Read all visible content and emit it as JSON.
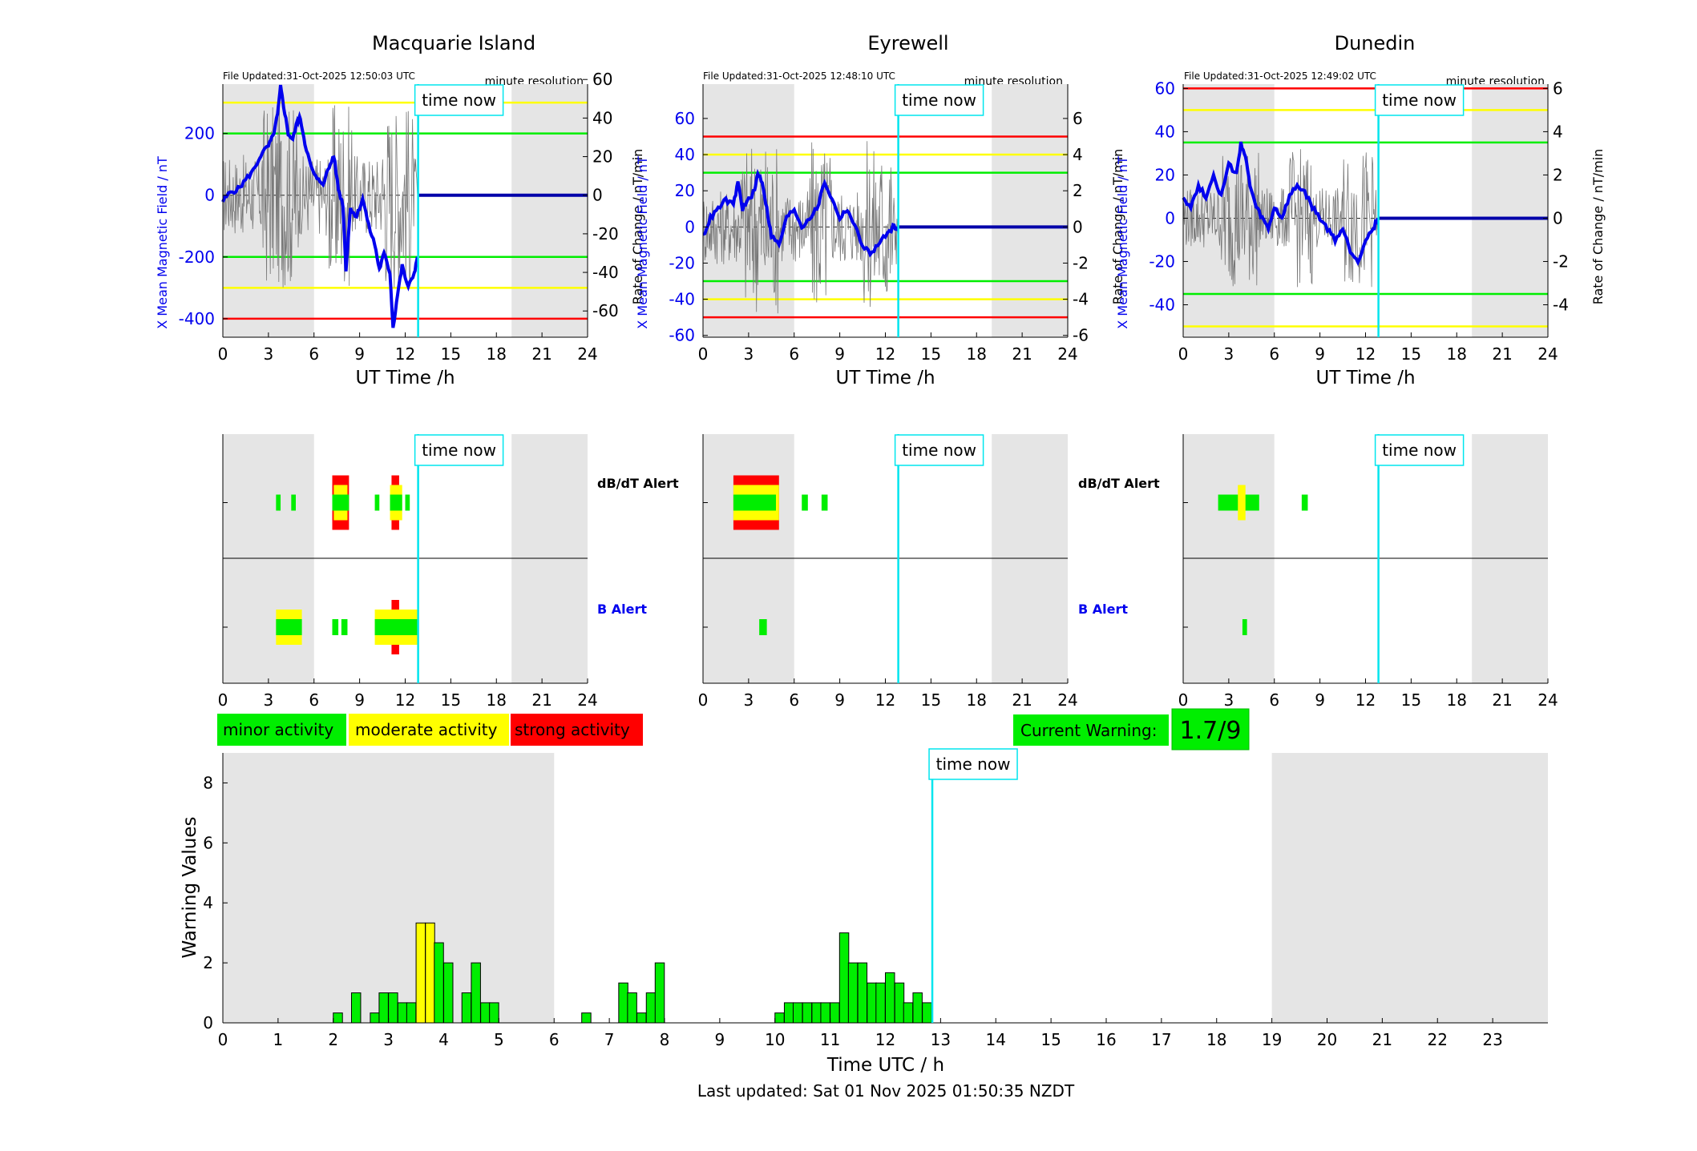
{
  "colors": {
    "night_shade": "#e5e5e5",
    "field_line": "#0000ee",
    "rate_line": "#777777",
    "minor": "#00ee00",
    "moderate": "#ffff00",
    "strong": "#ff0000",
    "time_now": "#00e5ee",
    "threshold_green": "#00ee00",
    "threshold_yellow": "#ffff00",
    "threshold_red": "#ff0000"
  },
  "common": {
    "time_now_label": "time now",
    "time_now_utc_h": 12.85,
    "resolution_label": "minute resolution",
    "x_label": "UT Time /h",
    "y_left_label": "X Mean Magnetic Field / nT",
    "y_right_label": "Rate of Change / nT/min",
    "dbdt_alert_label": "dB/dT Alert",
    "b_alert_label": "B Alert",
    "x_ticks": [
      0,
      3,
      6,
      9,
      12,
      15,
      18,
      21,
      24
    ]
  },
  "legend": {
    "minor": "minor activity",
    "moderate": "moderate activity",
    "strong": "strong activity"
  },
  "current_warning": {
    "label": "Current Warning:",
    "value": "1.7/9"
  },
  "footer": {
    "last_updated": "Last updated: Sat 01 Nov 2025 01:50:35 NZDT"
  },
  "chart_data": [
    {
      "type": "line",
      "station": "Macquarie Island",
      "file_updated": "File Updated:31-Oct-2025 12:50:03 UTC",
      "xlim": [
        0,
        24
      ],
      "ylim_left": [
        -460,
        360
      ],
      "ylim_right": [
        -73.6,
        57.6
      ],
      "left_ticks": [
        -400,
        -200,
        0,
        200
      ],
      "right_ticks": [
        -60,
        -40,
        -20,
        0,
        20,
        40,
        60
      ],
      "shading": [
        [
          0,
          6
        ],
        [
          19,
          24
        ]
      ],
      "thresholds_nT": [
        {
          "value": 300,
          "level": "moderate"
        },
        {
          "value": 200,
          "level": "minor"
        },
        {
          "value": -200,
          "level": "minor"
        },
        {
          "value": -300,
          "level": "moderate"
        },
        {
          "value": -400,
          "level": "strong"
        }
      ],
      "field_points": [
        [
          0,
          -20
        ],
        [
          0.5,
          10
        ],
        [
          1,
          20
        ],
        [
          1.5,
          50
        ],
        [
          2,
          80
        ],
        [
          2.5,
          130
        ],
        [
          3,
          160
        ],
        [
          3.3,
          190
        ],
        [
          3.6,
          260
        ],
        [
          3.8,
          350
        ],
        [
          4,
          290
        ],
        [
          4.3,
          200
        ],
        [
          4.6,
          180
        ],
        [
          4.9,
          240
        ],
        [
          5.1,
          250
        ],
        [
          5.4,
          170
        ],
        [
          5.8,
          90
        ],
        [
          6.2,
          50
        ],
        [
          6.6,
          40
        ],
        [
          7,
          90
        ],
        [
          7.3,
          130
        ],
        [
          7.6,
          20
        ],
        [
          7.9,
          -30
        ],
        [
          8.1,
          -240
        ],
        [
          8.4,
          -40
        ],
        [
          8.8,
          -70
        ],
        [
          9.2,
          -10
        ],
        [
          9.6,
          -100
        ],
        [
          10,
          -160
        ],
        [
          10.3,
          -240
        ],
        [
          10.6,
          -190
        ],
        [
          11,
          -250
        ],
        [
          11.2,
          -430
        ],
        [
          11.5,
          -320
        ],
        [
          11.8,
          -230
        ],
        [
          12.2,
          -300
        ],
        [
          12.6,
          -250
        ],
        [
          12.8,
          -200
        ]
      ],
      "rate_amplitude": 30,
      "dbdt_bars": [
        {
          "t": [
            3.5,
            3.8
          ],
          "level": "minor",
          "half": 10
        },
        {
          "t": [
            4.5,
            4.8
          ],
          "level": "minor",
          "half": 10
        },
        {
          "t": [
            7.2,
            8.3
          ],
          "level": "strong",
          "half": 34
        },
        {
          "t": [
            7.3,
            8.2
          ],
          "level": "moderate",
          "half": 22
        },
        {
          "t": [
            7.2,
            8.3
          ],
          "level": "minor",
          "half": 10
        },
        {
          "t": [
            10,
            10.3
          ],
          "level": "minor",
          "half": 10
        },
        {
          "t": [
            11.1,
            11.6
          ],
          "level": "strong",
          "half": 34
        },
        {
          "t": [
            11,
            11.8
          ],
          "level": "moderate",
          "half": 22
        },
        {
          "t": [
            11,
            11.8
          ],
          "level": "minor",
          "half": 10
        },
        {
          "t": [
            12,
            12.3
          ],
          "level": "minor",
          "half": 10
        }
      ],
      "b_bars": [
        {
          "t": [
            3.5,
            5.2
          ],
          "level": "moderate",
          "half": 22
        },
        {
          "t": [
            3.5,
            5.2
          ],
          "level": "minor",
          "half": 10
        },
        {
          "t": [
            7.2,
            7.6
          ],
          "level": "minor",
          "half": 10
        },
        {
          "t": [
            7.8,
            8.2
          ],
          "level": "minor",
          "half": 10
        },
        {
          "t": [
            11.1,
            11.6
          ],
          "level": "strong",
          "half": 34
        },
        {
          "t": [
            10,
            12.9
          ],
          "level": "moderate",
          "half": 22
        },
        {
          "t": [
            10,
            12.9
          ],
          "level": "minor",
          "half": 10
        }
      ]
    },
    {
      "type": "line",
      "station": "Eyrewell",
      "file_updated": "File Updated:31-Oct-2025 12:48:10 UTC",
      "xlim": [
        0,
        24
      ],
      "ylim_left": [
        -61,
        79
      ],
      "ylim_right": [
        -6.1,
        7.9
      ],
      "left_ticks": [
        -60,
        -40,
        -20,
        0,
        20,
        40,
        60
      ],
      "right_ticks": [
        -6,
        -4,
        -2,
        0,
        2,
        4,
        6
      ],
      "shading": [
        [
          0,
          6
        ],
        [
          19,
          24
        ]
      ],
      "thresholds_nT": [
        {
          "value": 50,
          "level": "strong"
        },
        {
          "value": 40,
          "level": "moderate"
        },
        {
          "value": 30,
          "level": "minor"
        },
        {
          "value": -30,
          "level": "minor"
        },
        {
          "value": -40,
          "level": "moderate"
        },
        {
          "value": -50,
          "level": "strong"
        }
      ],
      "field_points": [
        [
          0,
          -5
        ],
        [
          0.5,
          5
        ],
        [
          1,
          10
        ],
        [
          1.5,
          15
        ],
        [
          2,
          12
        ],
        [
          2.3,
          25
        ],
        [
          2.6,
          10
        ],
        [
          3,
          15
        ],
        [
          3.4,
          20
        ],
        [
          3.6,
          30
        ],
        [
          3.9,
          25
        ],
        [
          4.2,
          10
        ],
        [
          4.5,
          -5
        ],
        [
          5,
          -10
        ],
        [
          5.5,
          5
        ],
        [
          6,
          10
        ],
        [
          6.5,
          0
        ],
        [
          7,
          5
        ],
        [
          7.5,
          10
        ],
        [
          8,
          25
        ],
        [
          8.5,
          15
        ],
        [
          9,
          5
        ],
        [
          9.5,
          10
        ],
        [
          10,
          0
        ],
        [
          10.5,
          -10
        ],
        [
          11,
          -15
        ],
        [
          11.5,
          -10
        ],
        [
          12,
          -5
        ],
        [
          12.5,
          0
        ],
        [
          12.8,
          0
        ]
      ],
      "rate_amplitude": 3,
      "dbdt_bars": [
        {
          "t": [
            2,
            5
          ],
          "level": "strong",
          "half": 34
        },
        {
          "t": [
            2,
            5
          ],
          "level": "moderate",
          "half": 22
        },
        {
          "t": [
            2,
            4.8
          ],
          "level": "minor",
          "half": 10
        },
        {
          "t": [
            6.5,
            6.9
          ],
          "level": "minor",
          "half": 10
        },
        {
          "t": [
            7.8,
            8.2
          ],
          "level": "minor",
          "half": 10
        }
      ],
      "b_bars": [
        {
          "t": [
            3.7,
            4.2
          ],
          "level": "minor",
          "half": 10
        }
      ]
    },
    {
      "type": "line",
      "station": "Dunedin",
      "file_updated": "File Updated:31-Oct-2025 12:49:02 UTC",
      "xlim": [
        0,
        24
      ],
      "ylim_left": [
        -55,
        62
      ],
      "ylim_right": [
        -5.5,
        6.2
      ],
      "left_ticks": [
        -40,
        -20,
        0,
        20,
        40,
        60
      ],
      "right_ticks": [
        -4,
        -2,
        0,
        2,
        4,
        6
      ],
      "shading": [
        [
          0,
          6
        ],
        [
          19,
          24
        ]
      ],
      "thresholds_nT": [
        {
          "value": 60,
          "level": "strong"
        },
        {
          "value": 50,
          "level": "moderate"
        },
        {
          "value": 35,
          "level": "minor"
        },
        {
          "value": -35,
          "level": "minor"
        },
        {
          "value": -50,
          "level": "moderate"
        }
      ],
      "field_points": [
        [
          0,
          10
        ],
        [
          0.5,
          5
        ],
        [
          1,
          15
        ],
        [
          1.5,
          10
        ],
        [
          2,
          20
        ],
        [
          2.5,
          10
        ],
        [
          3,
          25
        ],
        [
          3.5,
          20
        ],
        [
          3.8,
          35
        ],
        [
          4.1,
          28
        ],
        [
          4.4,
          15
        ],
        [
          4.8,
          5
        ],
        [
          5.2,
          0
        ],
        [
          5.6,
          -5
        ],
        [
          6,
          5
        ],
        [
          6.5,
          0
        ],
        [
          7,
          10
        ],
        [
          7.5,
          15
        ],
        [
          8,
          12
        ],
        [
          8.5,
          5
        ],
        [
          9,
          0
        ],
        [
          9.5,
          -5
        ],
        [
          10,
          -10
        ],
        [
          10.5,
          -5
        ],
        [
          11,
          -15
        ],
        [
          11.5,
          -20
        ],
        [
          12,
          -10
        ],
        [
          12.5,
          -5
        ],
        [
          12.8,
          0
        ]
      ],
      "rate_amplitude": 2,
      "dbdt_bars": [
        {
          "t": [
            2.3,
            4.7
          ],
          "level": "minor",
          "half": 10
        },
        {
          "t": [
            3.6,
            4.1
          ],
          "level": "moderate",
          "half": 22
        },
        {
          "t": [
            4.6,
            5
          ],
          "level": "minor",
          "half": 10
        },
        {
          "t": [
            7.8,
            8.2
          ],
          "level": "minor",
          "half": 10
        }
      ],
      "b_bars": [
        {
          "t": [
            3.9,
            4.2
          ],
          "level": "minor",
          "half": 10
        }
      ]
    },
    {
      "type": "bar",
      "title": "",
      "xlabel": "Time UTC / h",
      "ylabel": "Warning Values",
      "xlim": [
        0,
        24
      ],
      "ylim": [
        0,
        9
      ],
      "x_ticks": [
        0,
        1,
        2,
        3,
        4,
        5,
        6,
        7,
        8,
        9,
        10,
        11,
        12,
        13,
        14,
        15,
        16,
        17,
        18,
        19,
        20,
        21,
        22,
        23
      ],
      "y_ticks": [
        0,
        2,
        4,
        6,
        8
      ],
      "shading": [
        [
          0,
          6
        ],
        [
          19,
          24
        ]
      ],
      "bar_width_h": 0.1667,
      "bars": [
        [
          2.0,
          0.33
        ],
        [
          2.33,
          1
        ],
        [
          2.67,
          0.33
        ],
        [
          2.83,
          1
        ],
        [
          3.0,
          1
        ],
        [
          3.17,
          0.67
        ],
        [
          3.33,
          0.67
        ],
        [
          3.5,
          3.33,
          "moderate"
        ],
        [
          3.67,
          3.33,
          "moderate"
        ],
        [
          3.83,
          2.67
        ],
        [
          4.0,
          2
        ],
        [
          4.17,
          0
        ],
        [
          4.33,
          1
        ],
        [
          4.5,
          2
        ],
        [
          4.67,
          0.67
        ],
        [
          4.83,
          0.67
        ],
        [
          6.5,
          0.33
        ],
        [
          7.17,
          1.33
        ],
        [
          7.33,
          1
        ],
        [
          7.5,
          0.33
        ],
        [
          7.67,
          1
        ],
        [
          7.83,
          2
        ],
        [
          10.0,
          0.33
        ],
        [
          10.17,
          0.67
        ],
        [
          10.33,
          0.67
        ],
        [
          10.5,
          0.67
        ],
        [
          10.67,
          0.67
        ],
        [
          10.83,
          0.67
        ],
        [
          11.0,
          0.67
        ],
        [
          11.17,
          3
        ],
        [
          11.33,
          2
        ],
        [
          11.5,
          2
        ],
        [
          11.67,
          1.33
        ],
        [
          11.83,
          1.33
        ],
        [
          12.0,
          1.67
        ],
        [
          12.17,
          1.33
        ],
        [
          12.33,
          0.67
        ],
        [
          12.5,
          1
        ],
        [
          12.67,
          0.67
        ]
      ]
    }
  ]
}
